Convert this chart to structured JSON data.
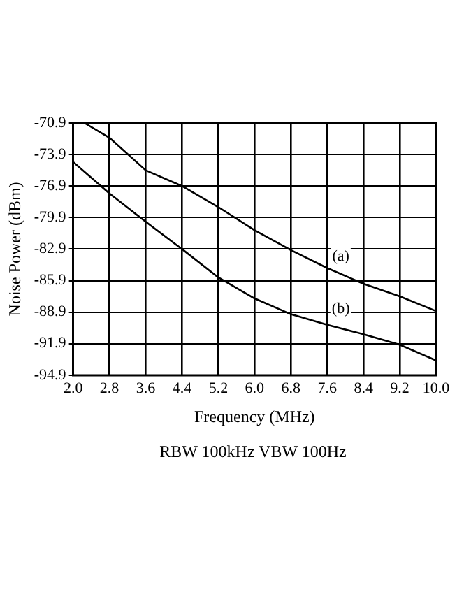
{
  "chart_data": {
    "type": "line",
    "xlabel": "Frequency (MHz)",
    "ylabel": "Noise Power (dBm)",
    "annotations": [
      {
        "text": "(a)",
        "x": 7.9,
        "y": -83.6
      },
      {
        "text": "(b)",
        "x": 7.9,
        "y": -88.6
      },
      "RBW 100kHz  VBW 100Hz"
    ],
    "series": [
      {
        "color": "#000000",
        "x": [
          2.25,
          2.8,
          3.6,
          4.4,
          5.2,
          6.0,
          6.8,
          7.6,
          8.4,
          9.2,
          10.0
        ],
        "values": [
          -70.9,
          -72.3,
          -75.4,
          -76.9,
          -78.9,
          -81.1,
          -83.0,
          -84.7,
          -86.2,
          -87.4,
          -88.8
        ]
      },
      {
        "color": "#000000",
        "x": [
          2.0,
          2.8,
          3.6,
          4.4,
          5.2,
          6.0,
          6.8,
          7.6,
          8.4,
          9.2,
          10.0
        ],
        "values": [
          -74.6,
          -77.6,
          -80.3,
          -82.9,
          -85.6,
          -87.6,
          -89.1,
          -90.1,
          -91.0,
          -92.0,
          -93.5
        ]
      }
    ],
    "xlim": [
      2.0,
      10.0
    ],
    "xticks": [
      {
        "value": 2,
        "label": "2.0"
      },
      {
        "value": 2.8,
        "label": "2.8"
      },
      {
        "value": 3.6,
        "label": "3.6"
      },
      {
        "value": 4.4,
        "label": "4.4"
      },
      {
        "value": 5.2,
        "label": "5.2"
      },
      {
        "value": 6,
        "label": "6.0"
      },
      {
        "value": 6.8,
        "label": "6.8"
      },
      {
        "value": 7.6,
        "label": "7.6"
      },
      {
        "value": 8.4,
        "label": "8.4"
      },
      {
        "value": 9.2,
        "label": "9.2"
      },
      {
        "value": 10,
        "label": "10.0"
      }
    ],
    "ylim": [
      -94.9,
      -70.9
    ],
    "yticks": [
      -94.9,
      -91.9,
      -88.9,
      -85.9,
      -82.9,
      -79.9,
      -76.9,
      -73.9,
      -70.9
    ],
    "grid": true,
    "marker": "none",
    "line_style": "solid"
  }
}
